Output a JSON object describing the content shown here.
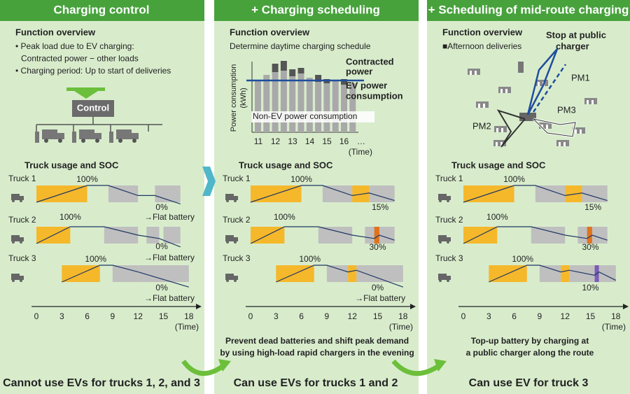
{
  "panels": [
    {
      "title": "Charging control",
      "overview": {
        "heading": "Function overview",
        "lines": [
          "• Peak load due to EV charging:",
          "Contracted power − other loads",
          "• Charging period: Up to start of deliveries"
        ]
      },
      "control_label": "Control",
      "soc": {
        "heading": "Truck usage and SOC",
        "trucks": [
          {
            "name": "Truck 1",
            "labels": [
              "100%",
              "0%",
              "→Flat battery"
            ]
          },
          {
            "name": "Truck 2",
            "labels": [
              "100%",
              "0%",
              "→Flat battery"
            ]
          },
          {
            "name": "Truck 3",
            "labels": [
              "100%",
              "0%",
              "→Flat battery"
            ]
          }
        ]
      },
      "conclusion": "Cannot use EVs for trucks 1, 2, and 3"
    },
    {
      "title": "+ Charging scheduling",
      "overview": {
        "heading": "Function overview",
        "lines": [
          "Determine daytime charging schedule"
        ]
      },
      "chart": {
        "y_label": [
          "Power consumption",
          "(kWh)"
        ],
        "contracted": [
          "Contracted",
          "power"
        ],
        "ev": [
          "EV power",
          "consumption"
        ],
        "non_ev": "Non-EV power consumption",
        "ticks": [
          "11",
          "12",
          "13",
          "14",
          "15",
          "16",
          "…"
        ],
        "unit": "(Time)"
      },
      "soc": {
        "heading": "Truck usage and SOC",
        "trucks": [
          {
            "name": "Truck 1",
            "labels": [
              "100%",
              "15%"
            ]
          },
          {
            "name": "Truck 2",
            "labels": [
              "100%",
              "30%"
            ]
          },
          {
            "name": "Truck 3",
            "labels": [
              "100%",
              "0%",
              "→Flat battery"
            ]
          }
        ]
      },
      "note": [
        "Prevent dead batteries and shift peak demand",
        "by using high-load rapid chargers in the evening"
      ],
      "conclusion": "Can use EVs for trucks 1 and 2"
    },
    {
      "title": "+ Scheduling of mid-route charging",
      "overview": {
        "heading": "Function overview",
        "lines": [
          "■Afternoon deliveries"
        ]
      },
      "map": {
        "stop": [
          "Stop at public",
          "charger"
        ],
        "routes": [
          "PM1",
          "PM2",
          "PM3"
        ]
      },
      "soc": {
        "heading": "Truck usage and SOC",
        "trucks": [
          {
            "name": "Truck 1",
            "labels": [
              "100%",
              "15%"
            ]
          },
          {
            "name": "Truck 2",
            "labels": [
              "100%",
              "30%"
            ]
          },
          {
            "name": "Truck 3",
            "labels": [
              "100%",
              "10%"
            ]
          }
        ]
      },
      "note": [
        "Top-up battery by charging at",
        "a public charger along the route"
      ],
      "conclusion": "Can use EV for truck 3"
    }
  ],
  "time_axis": {
    "ticks": [
      "0",
      "3",
      "6",
      "9",
      "12",
      "15",
      "18"
    ],
    "unit": "(Time)"
  }
}
